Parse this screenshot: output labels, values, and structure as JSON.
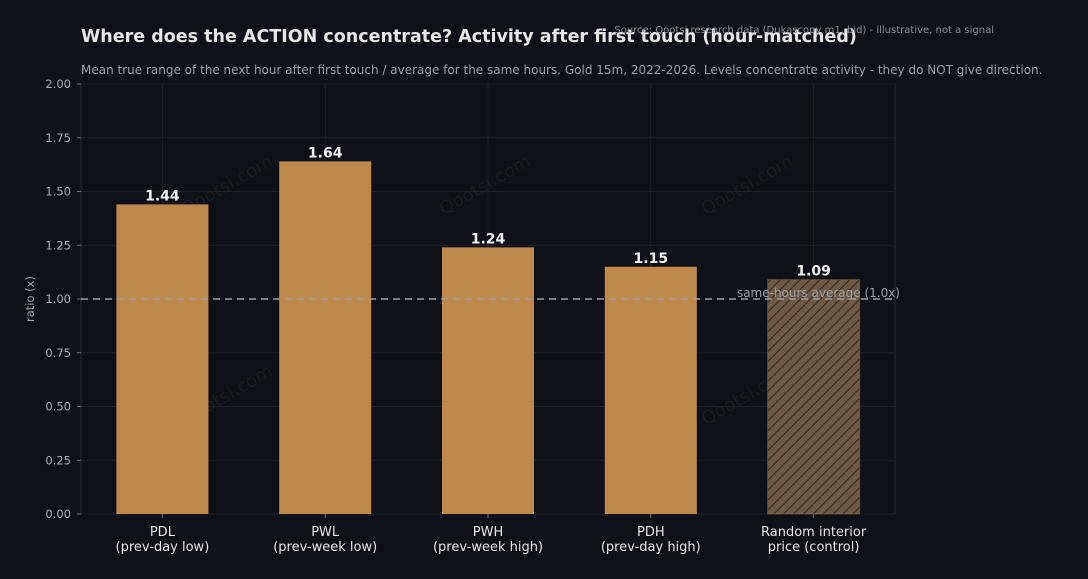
{
  "chart_data": {
    "type": "bar",
    "title": "Where does the ACTION concentrate? Activity after first touch (hour-matched)",
    "subtitle": "Mean true range of the next hour after first touch / average for the same hours. Gold 15m, 2022-2026. Levels concentrate activity - they do NOT give direction.",
    "source": "Source: Qootsi research data (Dukascopy m1, bid) - illustrative, not a signal",
    "ylabel": "ratio (x)",
    "xlabel": "",
    "ylim": [
      0,
      2.0
    ],
    "yticks": [
      "0.00",
      "0.25",
      "0.50",
      "0.75",
      "1.00",
      "1.25",
      "1.50",
      "1.75",
      "2.00"
    ],
    "grid": true,
    "categories": [
      [
        "PDL",
        "(prev-day low)"
      ],
      [
        "PWL",
        "(prev-week low)"
      ],
      [
        "PWH",
        "(prev-week high)"
      ],
      [
        "PDH",
        "(prev-day high)"
      ],
      [
        "Random interior",
        "price (control)"
      ]
    ],
    "values": [
      1.44,
      1.64,
      1.24,
      1.15,
      1.09
    ],
    "value_labels": [
      "1.44",
      "1.64",
      "1.24",
      "1.15",
      "1.09"
    ],
    "hatched": [
      false,
      false,
      false,
      false,
      true
    ],
    "reference_line": {
      "value": 1.0,
      "label": "same-hours average (1.0x)"
    },
    "watermark": "Qootsi.com",
    "colors": {
      "background": "#0e1117",
      "bar": "#c0894c",
      "control_bar": "#6e5a44",
      "hatch": "#2f2a24",
      "grid": "#1f232a",
      "reference": "#9aa0a6"
    }
  }
}
